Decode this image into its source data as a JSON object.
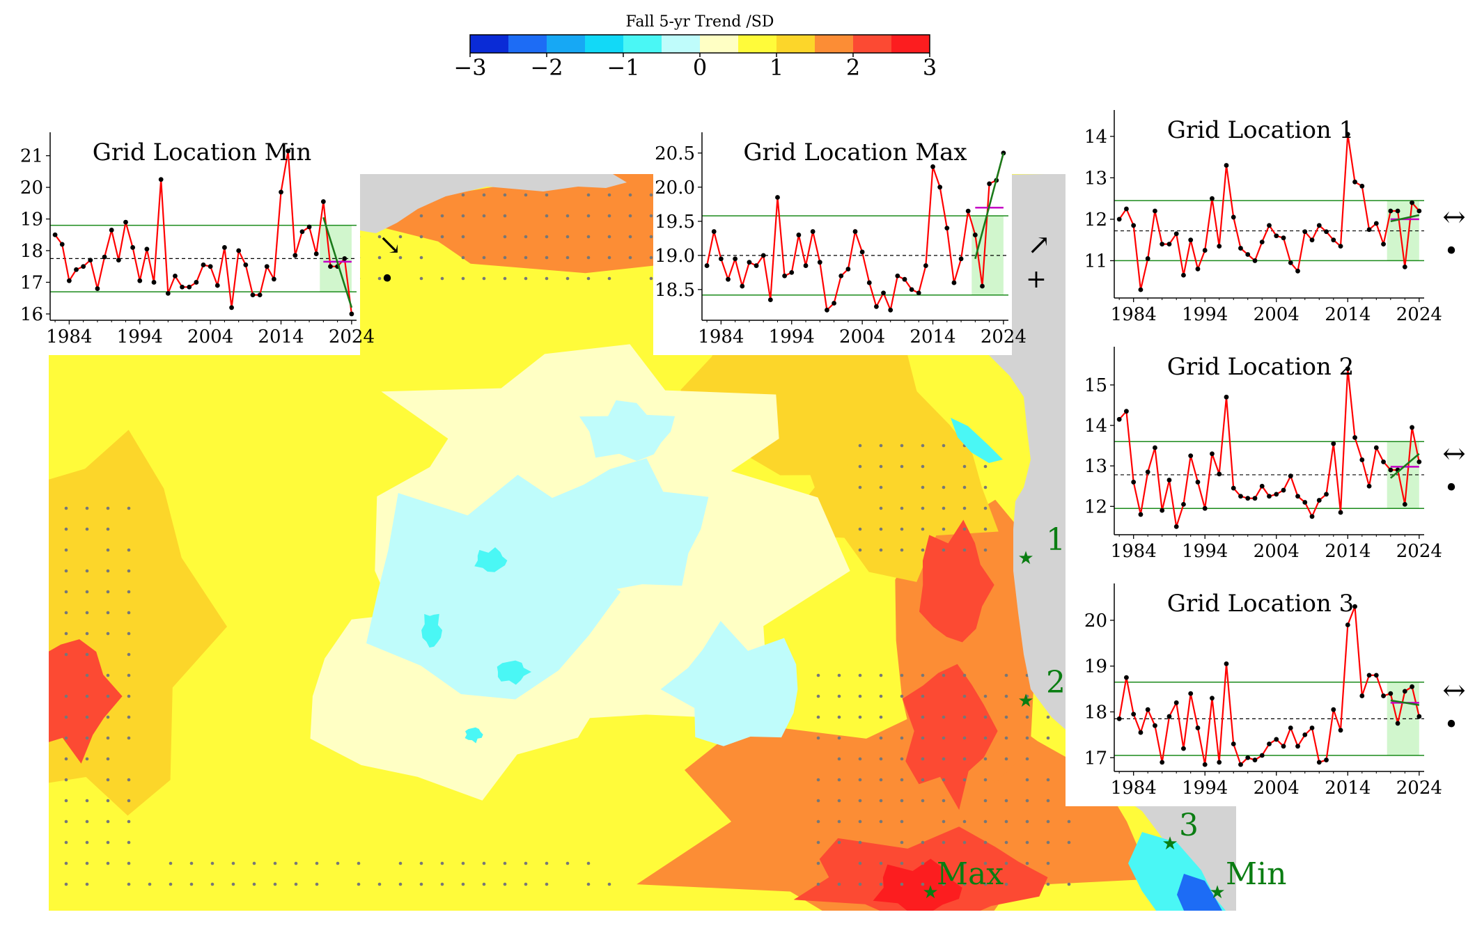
{
  "colorbar": {
    "title": "Fall 5-yr Trend /SD",
    "ticks": [
      "−3",
      "−2",
      "−1",
      "0",
      "1",
      "2",
      "3"
    ],
    "tick_values": [
      -3,
      -2,
      -1,
      0,
      1,
      2,
      3
    ],
    "colors": [
      "#0a2bd6",
      "#1d6cf5",
      "#17a8f4",
      "#12d9f7",
      "#4af7f5",
      "#bffcfb",
      "#ffffc4",
      "#fffb3a",
      "#fcd62a",
      "#fc8d35",
      "#fc4a33",
      "#fc1d1f"
    ]
  },
  "map": {
    "land_color": "#d3d3d3",
    "markers": [
      {
        "label": "1",
        "symbol": "★"
      },
      {
        "label": "2",
        "symbol": "★"
      },
      {
        "label": "3",
        "symbol": "★"
      },
      {
        "label": "Max",
        "symbol": "★"
      },
      {
        "label": "Min",
        "symbol": "★"
      }
    ],
    "marker_color": "#0a7d12"
  },
  "chart_data": [
    {
      "type": "line",
      "title": "Grid Location Min",
      "x": [
        1982,
        1983,
        1984,
        1985,
        1986,
        1987,
        1988,
        1989,
        1990,
        1991,
        1992,
        1993,
        1994,
        1995,
        1996,
        1997,
        1998,
        1999,
        2000,
        2001,
        2002,
        2003,
        2004,
        2005,
        2006,
        2007,
        2008,
        2009,
        2010,
        2011,
        2012,
        2013,
        2014,
        2015,
        2016,
        2017,
        2018,
        2019,
        2020,
        2021,
        2022,
        2023,
        2024
      ],
      "values": [
        18.5,
        18.2,
        17.05,
        17.4,
        17.5,
        17.7,
        16.8,
        17.8,
        18.65,
        17.7,
        18.9,
        18.1,
        17.05,
        18.05,
        17.0,
        20.25,
        16.65,
        17.2,
        16.85,
        16.85,
        17.0,
        17.55,
        17.5,
        16.9,
        18.1,
        16.2,
        18.0,
        17.55,
        16.6,
        16.6,
        17.5,
        17.1,
        19.85,
        21.15,
        17.85,
        18.6,
        18.75,
        17.9,
        19.55,
        17.5,
        17.5,
        17.75,
        16.0
      ],
      "yticks": [
        "16",
        "17",
        "18",
        "19",
        "20",
        "21"
      ],
      "ytick_values": [
        16,
        17,
        18,
        19,
        20,
        21
      ],
      "ylim": [
        15.8,
        21.3
      ],
      "xticks": [
        "1984",
        "1994",
        "2004",
        "2014",
        "2024"
      ],
      "xtick_values": [
        1984,
        1994,
        2004,
        2014,
        2024
      ],
      "mean": 17.75,
      "sd_band": [
        16.7,
        18.8
      ],
      "trend_window": [
        2020,
        2024
      ],
      "trend_line": {
        "x": [
          2020,
          2024
        ],
        "y": [
          19.05,
          16.2
        ]
      },
      "window_mean": 17.65,
      "trend_symbol": "↘",
      "mean_symbol": "•"
    },
    {
      "type": "line",
      "title": "Grid Location Max",
      "x": [
        1982,
        1983,
        1984,
        1985,
        1986,
        1987,
        1988,
        1989,
        1990,
        1991,
        1992,
        1993,
        1994,
        1995,
        1996,
        1997,
        1998,
        1999,
        2000,
        2001,
        2002,
        2003,
        2004,
        2005,
        2006,
        2007,
        2008,
        2009,
        2010,
        2011,
        2012,
        2013,
        2014,
        2015,
        2016,
        2017,
        2018,
        2019,
        2020,
        2021,
        2022,
        2023,
        2024
      ],
      "values": [
        18.85,
        19.35,
        18.95,
        18.65,
        18.95,
        18.55,
        18.9,
        18.85,
        19.0,
        18.35,
        19.85,
        18.7,
        18.75,
        19.3,
        18.85,
        19.35,
        18.9,
        18.2,
        18.3,
        18.7,
        18.8,
        19.35,
        19.05,
        18.6,
        18.25,
        18.45,
        18.2,
        18.7,
        18.65,
        18.5,
        18.45,
        18.85,
        20.3,
        20.0,
        19.4,
        18.6,
        18.95,
        19.65,
        19.3,
        18.55,
        20.05,
        20.1,
        20.5
      ],
      "yticks": [
        "18.5",
        "19.0",
        "19.5",
        "20.0",
        "20.5"
      ],
      "ytick_values": [
        18.5,
        19.0,
        19.5,
        20.0,
        20.5
      ],
      "ylim": [
        18.05,
        20.6
      ],
      "xticks": [
        "1984",
        "1994",
        "2004",
        "2014",
        "2024"
      ],
      "xtick_values": [
        1984,
        1994,
        2004,
        2014,
        2024
      ],
      "mean": 19.0,
      "sd_band": [
        18.42,
        19.58
      ],
      "trend_window": [
        2020,
        2024
      ],
      "trend_line": {
        "x": [
          2020,
          2024
        ],
        "y": [
          18.95,
          20.5
        ]
      },
      "window_mean": 19.7,
      "trend_symbol": "↗",
      "mean_symbol": "+"
    },
    {
      "type": "line",
      "title": "Grid Location 1",
      "x": [
        1982,
        1983,
        1984,
        1985,
        1986,
        1987,
        1988,
        1989,
        1990,
        1991,
        1992,
        1993,
        1994,
        1995,
        1996,
        1997,
        1998,
        1999,
        2000,
        2001,
        2002,
        2003,
        2004,
        2005,
        2006,
        2007,
        2008,
        2009,
        2010,
        2011,
        2012,
        2013,
        2014,
        2015,
        2016,
        2017,
        2018,
        2019,
        2020,
        2021,
        2022,
        2023,
        2024
      ],
      "values": [
        12.0,
        12.25,
        11.85,
        10.3,
        11.05,
        12.2,
        11.4,
        11.4,
        11.65,
        10.65,
        11.5,
        10.8,
        11.25,
        12.5,
        11.35,
        13.3,
        12.05,
        11.3,
        11.15,
        11.0,
        11.45,
        11.85,
        11.6,
        11.55,
        10.95,
        10.75,
        11.7,
        11.5,
        11.85,
        11.7,
        11.5,
        11.35,
        14.05,
        12.9,
        12.8,
        11.75,
        11.9,
        11.4,
        12.2,
        12.2,
        10.85,
        12.4,
        12.2
      ],
      "yticks": [
        "11",
        "12",
        "13",
        "14"
      ],
      "ytick_values": [
        11,
        12,
        13,
        14
      ],
      "ylim": [
        10.1,
        14.3
      ],
      "xticks": [
        "1984",
        "1994",
        "2004",
        "2014",
        "2024"
      ],
      "xtick_values": [
        1984,
        1994,
        2004,
        2014,
        2024
      ],
      "mean": 11.72,
      "sd_band": [
        11.0,
        12.45
      ],
      "trend_window": [
        2020,
        2024
      ],
      "trend_line": {
        "x": [
          2020,
          2024
        ],
        "y": [
          11.95,
          12.1
        ]
      },
      "window_mean": 12.0,
      "trend_symbol": "↔",
      "mean_symbol": "•"
    },
    {
      "type": "line",
      "title": "Grid Location 2",
      "x": [
        1982,
        1983,
        1984,
        1985,
        1986,
        1987,
        1988,
        1989,
        1990,
        1991,
        1992,
        1993,
        1994,
        1995,
        1996,
        1997,
        1998,
        1999,
        2000,
        2001,
        2002,
        2003,
        2004,
        2005,
        2006,
        2007,
        2008,
        2009,
        2010,
        2011,
        2012,
        2013,
        2014,
        2015,
        2016,
        2017,
        2018,
        2019,
        2020,
        2021,
        2022,
        2023,
        2024
      ],
      "values": [
        14.15,
        14.35,
        12.6,
        11.8,
        12.85,
        13.45,
        11.9,
        12.65,
        11.5,
        12.05,
        13.25,
        12.6,
        11.95,
        13.3,
        12.8,
        14.7,
        12.45,
        12.25,
        12.2,
        12.2,
        12.5,
        12.25,
        12.3,
        12.4,
        12.75,
        12.25,
        12.1,
        11.75,
        12.15,
        12.3,
        13.55,
        11.85,
        15.4,
        13.7,
        13.15,
        12.5,
        13.45,
        13.1,
        12.9,
        12.9,
        12.05,
        13.95,
        13.1
      ],
      "yticks": [
        "12",
        "13",
        "14",
        "15"
      ],
      "ytick_values": [
        12,
        13,
        14,
        15
      ],
      "ylim": [
        11.3,
        15.6
      ],
      "xticks": [
        "1984",
        "1994",
        "2004",
        "2014",
        "2024"
      ],
      "xtick_values": [
        1984,
        1994,
        2004,
        2014,
        2024
      ],
      "mean": 12.78,
      "sd_band": [
        11.95,
        13.6
      ],
      "trend_window": [
        2020,
        2024
      ],
      "trend_line": {
        "x": [
          2020,
          2024
        ],
        "y": [
          12.7,
          13.3
        ]
      },
      "window_mean": 12.98,
      "trend_symbol": "↔",
      "mean_symbol": "•"
    },
    {
      "type": "line",
      "title": "Grid Location 3",
      "x": [
        1982,
        1983,
        1984,
        1985,
        1986,
        1987,
        1988,
        1989,
        1990,
        1991,
        1992,
        1993,
        1994,
        1995,
        1996,
        1997,
        1998,
        1999,
        2000,
        2001,
        2002,
        2003,
        2004,
        2005,
        2006,
        2007,
        2008,
        2009,
        2010,
        2011,
        2012,
        2013,
        2014,
        2015,
        2016,
        2017,
        2018,
        2019,
        2020,
        2021,
        2022,
        2023,
        2024
      ],
      "values": [
        17.85,
        18.75,
        17.95,
        17.55,
        18.05,
        17.7,
        16.9,
        17.9,
        18.2,
        17.2,
        18.4,
        17.65,
        16.85,
        18.3,
        16.9,
        19.05,
        17.3,
        16.85,
        17.0,
        16.95,
        17.05,
        17.3,
        17.4,
        17.25,
        17.65,
        17.25,
        17.5,
        17.65,
        16.9,
        16.95,
        18.05,
        17.6,
        19.9,
        20.3,
        18.35,
        18.8,
        18.8,
        18.35,
        18.4,
        17.75,
        18.45,
        18.55,
        17.9
      ],
      "yticks": [
        "17",
        "18",
        "19",
        "20"
      ],
      "ytick_values": [
        17,
        18,
        19,
        20
      ],
      "ylim": [
        16.7,
        20.5
      ],
      "xticks": [
        "1984",
        "1994",
        "2004",
        "2014",
        "2024"
      ],
      "xtick_values": [
        1984,
        1994,
        2004,
        2014,
        2024
      ],
      "mean": 17.85,
      "sd_band": [
        17.05,
        18.65
      ],
      "trend_window": [
        2020,
        2024
      ],
      "trend_line": {
        "x": [
          2020,
          2024
        ],
        "y": [
          18.25,
          18.15
        ]
      },
      "window_mean": 18.2,
      "trend_symbol": "↔",
      "mean_symbol": "•"
    }
  ]
}
